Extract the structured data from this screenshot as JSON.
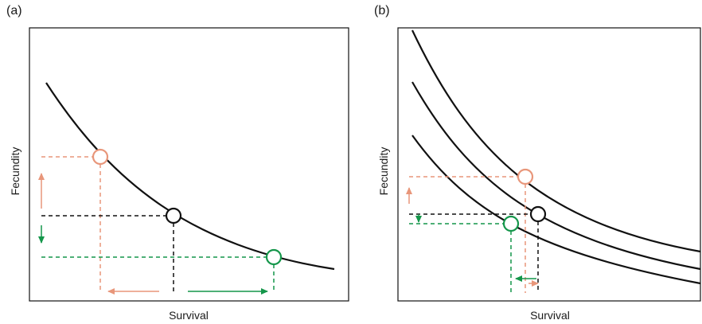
{
  "panels": [
    {
      "tag": "(a)",
      "xlabel": "Survival",
      "ylabel": "Fecundity"
    },
    {
      "tag": "(b)",
      "xlabel": "Survival",
      "ylabel": "Fecundity"
    }
  ],
  "colors": {
    "orange": "#e8967a",
    "green": "#14964a",
    "black": "#111111"
  }
}
